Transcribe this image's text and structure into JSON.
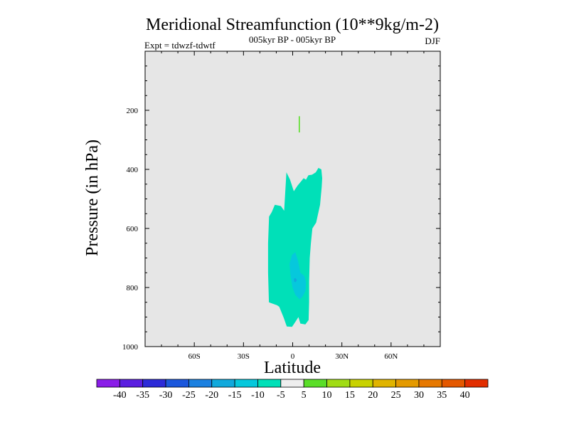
{
  "chart_data": {
    "type": "heatmap",
    "title": "Meridional Streamfunction (10**9kg/m-2)",
    "subtitle": "005kyr BP - 005kyr BP",
    "experiment_label": "Expt = tdwzf-tdwtf",
    "season": "DJF",
    "xlabel": "Latitude",
    "ylabel": "Pressure (in hPa)",
    "xlim": [
      -90,
      90
    ],
    "ylim": [
      1000,
      0
    ],
    "x_ticks": [
      {
        "value": -60,
        "label": "60S"
      },
      {
        "value": -30,
        "label": "30S"
      },
      {
        "value": 0,
        "label": "0"
      },
      {
        "value": 30,
        "label": "30N"
      },
      {
        "value": 60,
        "label": "60N"
      }
    ],
    "y_ticks": [
      {
        "value": 200,
        "label": "200"
      },
      {
        "value": 400,
        "label": "400"
      },
      {
        "value": 600,
        "label": "600"
      },
      {
        "value": 800,
        "label": "800"
      },
      {
        "value": 1000,
        "label": "1000"
      }
    ],
    "background_color": "#e6e6e6",
    "colorbar": {
      "labels": [
        "-40",
        "-35",
        "-30",
        "-25",
        "-20",
        "-15",
        "-10",
        "-5",
        "5",
        "10",
        "15",
        "20",
        "25",
        "30",
        "35",
        "40"
      ],
      "colors": [
        "#8a1de8",
        "#5a1ee0",
        "#2c2ad8",
        "#1b57dc",
        "#1b80e0",
        "#11a9dc",
        "#06c8dc",
        "#00e0b8",
        "#eeeeee",
        "#5ade28",
        "#a0dc14",
        "#c8d200",
        "#e0b400",
        "#e49a00",
        "#e67800",
        "#e45800",
        "#e22e00"
      ]
    },
    "contours": [
      {
        "name": "minus-5-to-zero-region",
        "level": "-5",
        "color": "#00e0b8",
        "points": [
          [
            -12.7,
            544
          ],
          [
            -10.9,
            520
          ],
          [
            -7.2,
            524
          ],
          [
            -5.2,
            540
          ],
          [
            -3.8,
            410
          ],
          [
            -1.6,
            435
          ],
          [
            0.7,
            474
          ],
          [
            3,
            455
          ],
          [
            5.2,
            440
          ],
          [
            6.7,
            430
          ],
          [
            8.1,
            435
          ],
          [
            9.6,
            420
          ],
          [
            11.8,
            418
          ],
          [
            14.1,
            410
          ],
          [
            15.7,
            395
          ],
          [
            17.5,
            400
          ],
          [
            18,
            430
          ],
          [
            17.7,
            460
          ],
          [
            16.7,
            520
          ],
          [
            14.3,
            580
          ],
          [
            12,
            600
          ],
          [
            11.1,
            650
          ],
          [
            10.4,
            700
          ],
          [
            10,
            780
          ],
          [
            10,
            850
          ],
          [
            9.7,
            910
          ],
          [
            7.7,
            925
          ],
          [
            4.7,
            922
          ],
          [
            3.5,
            900
          ],
          [
            1.8,
            915
          ],
          [
            -0.4,
            933
          ],
          [
            -3.6,
            932
          ],
          [
            -5.5,
            902
          ],
          [
            -8.2,
            865
          ],
          [
            -9.6,
            860
          ],
          [
            -14.5,
            850
          ],
          [
            -15,
            750
          ],
          [
            -15,
            650
          ],
          [
            -14.4,
            560
          ]
        ]
      },
      {
        "name": "minus-10-to-minus-5-region",
        "level": "-10",
        "color": "#06c8dc",
        "points": [
          [
            -0.4,
            690
          ],
          [
            1.6,
            680
          ],
          [
            3.3,
            710
          ],
          [
            4.7,
            750
          ],
          [
            7,
            760
          ],
          [
            8.1,
            780
          ],
          [
            7.9,
            810
          ],
          [
            6.1,
            830
          ],
          [
            4.3,
            840
          ],
          [
            1.6,
            825
          ],
          [
            -0.1,
            800
          ],
          [
            -1.3,
            760
          ],
          [
            -1.9,
            720
          ]
        ]
      },
      {
        "name": "minus-15-to-minus-10-region",
        "level": "-15",
        "color": "#11a9dc",
        "points": [
          [
            0.7,
            770
          ],
          [
            1.8,
            768
          ],
          [
            2.6,
            775
          ],
          [
            1.8,
            782
          ],
          [
            0.9,
            780
          ]
        ]
      },
      {
        "name": "five-to-ten-region",
        "level": "5",
        "color": "#5ade28",
        "points": [
          [
            3.7,
            220
          ],
          [
            4.4,
            220
          ],
          [
            4.4,
            275
          ],
          [
            3.7,
            275
          ]
        ]
      }
    ]
  }
}
